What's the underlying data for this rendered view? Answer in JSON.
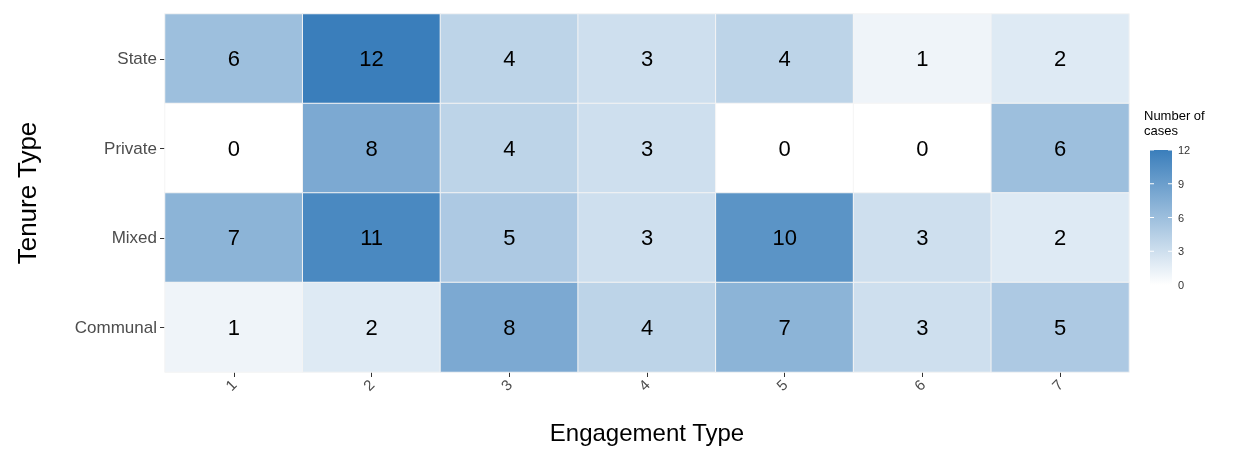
{
  "chart_data": {
    "type": "heatmap",
    "xlabel": "Engagement Type",
    "ylabel": "Tenure Type",
    "clabel": "Number of cases",
    "categories": [
      "1",
      "2",
      "3",
      "4",
      "5",
      "6",
      "7"
    ],
    "y_categories": [
      "State",
      "Private",
      "Mixed",
      "Communal"
    ],
    "cells": [
      [
        6,
        12,
        4,
        3,
        4,
        1,
        2
      ],
      [
        0,
        8,
        4,
        3,
        0,
        0,
        6
      ],
      [
        7,
        11,
        5,
        3,
        10,
        3,
        2
      ],
      [
        1,
        2,
        8,
        4,
        7,
        3,
        5
      ]
    ],
    "clim": [
      0,
      12
    ],
    "cticks": [
      0,
      3,
      6,
      9,
      12
    ],
    "colors": [
      "#ffffff",
      "#3a7ebb"
    ],
    "data_labels": true
  }
}
